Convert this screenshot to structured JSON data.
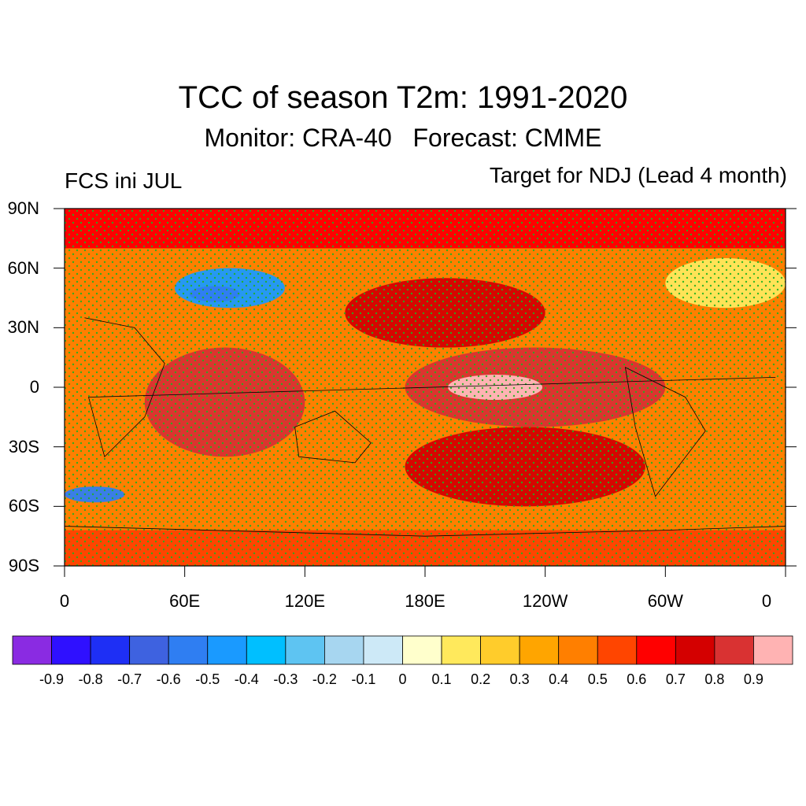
{
  "header": {
    "title": "TCC of season T2m: 1991-2020",
    "subtitle": "Monitor: CRA-40   Forecast: CMME",
    "left_label": "FCS ini JUL",
    "right_label": "Target for NDJ (Lead 4 month)"
  },
  "map": {
    "projection": "cylindrical-equidistant",
    "lon_range": [
      0,
      360
    ],
    "lat_range": [
      -90,
      90
    ],
    "stippling": "significant",
    "y_ticks": [
      {
        "lat": 90,
        "label": "90N"
      },
      {
        "lat": 60,
        "label": "60N"
      },
      {
        "lat": 30,
        "label": "30N"
      },
      {
        "lat": 0,
        "label": "0"
      },
      {
        "lat": -30,
        "label": "30S"
      },
      {
        "lat": -60,
        "label": "60S"
      },
      {
        "lat": -90,
        "label": "90S"
      }
    ],
    "x_ticks": [
      {
        "lon": 0,
        "label": "0"
      },
      {
        "lon": 60,
        "label": "60E"
      },
      {
        "lon": 120,
        "label": "120E"
      },
      {
        "lon": 180,
        "label": "180E"
      },
      {
        "lon": 240,
        "label": "120W"
      },
      {
        "lon": 300,
        "label": "60W"
      },
      {
        "lon": 360,
        "label": "0"
      }
    ],
    "regions": [
      {
        "name": "tropical-pacific",
        "lon": [
          170,
          300
        ],
        "lat": [
          -20,
          20
        ],
        "level": 0.9
      },
      {
        "name": "indian-ocean",
        "lon": [
          40,
          120
        ],
        "lat": [
          -35,
          20
        ],
        "level": 0.8
      },
      {
        "name": "north-pacific",
        "lon": [
          140,
          240
        ],
        "lat": [
          20,
          55
        ],
        "level": 0.7
      },
      {
        "name": "south-pacific",
        "lon": [
          170,
          290
        ],
        "lat": [
          -60,
          -20
        ],
        "level": 0.7
      },
      {
        "name": "central-asia",
        "lon": [
          55,
          110
        ],
        "lat": [
          40,
          60
        ],
        "level": -0.5
      },
      {
        "name": "southern-ocean-atlantic",
        "lon": [
          0,
          30
        ],
        "lat": [
          -58,
          -50
        ],
        "level": -0.6
      },
      {
        "name": "north-atlantic",
        "lon": [
          300,
          360
        ],
        "lat": [
          40,
          65
        ],
        "level": 0.1
      }
    ]
  },
  "colorbar": {
    "colors": [
      "#8a2be2",
      "#2f10ff",
      "#1e2ff5",
      "#3e62e0",
      "#2f7ef2",
      "#1a9aff",
      "#00bfff",
      "#5ec4f2",
      "#a7d6f0",
      "#cde9f7",
      "#ffffcc",
      "#ffe95c",
      "#ffcc2b",
      "#ffa500",
      "#ff7f00",
      "#ff4500",
      "#ff0000",
      "#d40000",
      "#d93232",
      "#ffb3b3"
    ],
    "labels": [
      "-0.9",
      "-0.8",
      "-0.7",
      "-0.6",
      "-0.5",
      "-0.4",
      "-0.3",
      "-0.2",
      "-0.1",
      "0",
      "0.1",
      "0.2",
      "0.3",
      "0.4",
      "0.5",
      "0.6",
      "0.7",
      "0.8",
      "0.9"
    ]
  }
}
